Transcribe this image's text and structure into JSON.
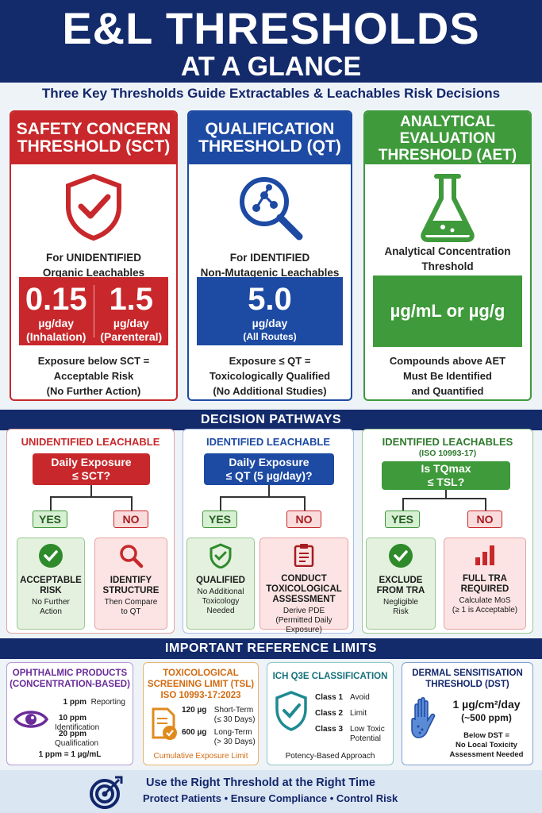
{
  "header": {
    "title": "E&L THRESHOLDS",
    "subtitle": "AT A GLANCE"
  },
  "tagline": "Three Key Thresholds Guide Extractables & Leachables Risk Decisions",
  "cards": {
    "sct": {
      "title": "SAFETY CONCERN THRESHOLD (SCT)",
      "for_line1": "For UNIDENTIFIED",
      "for_line2": "Organic Leachables",
      "v1": "0.15",
      "u1": "µg/day",
      "r1": "(Inhalation)",
      "v2": "1.5",
      "u2": "µg/day",
      "r2": "(Parenteral)",
      "note1": "Exposure below SCT =",
      "note2": "Acceptable Risk",
      "note3": "(No Further Action)",
      "icon": "shield-check-icon"
    },
    "qt": {
      "title": "QUALIFICATION THRESHOLD (QT)",
      "for_line1": "For IDENTIFIED",
      "for_line2": "Non-Mutagenic Leachables",
      "v1": "5.0",
      "u1": "µg/day",
      "r1": "(All Routes)",
      "note1": "Exposure ≤ QT =",
      "note2": "Toxicologically Qualified",
      "note3": "(No Additional Studies)",
      "icon": "magnifier-molecule-icon"
    },
    "aet": {
      "title": "ANALYTICAL EVALUATION THRESHOLD (AET)",
      "for_line1": "Analytical Concentration",
      "for_line2": "Threshold",
      "v1": "µg/mL or µg/g",
      "note1": "Compounds above AET",
      "note2": "Must Be Identified",
      "note3": "and Quantified",
      "icon": "flask-icon"
    }
  },
  "pathways": {
    "title": "DECISION PATHWAYS",
    "p1": {
      "title": "UNIDENTIFIED LEACHABLE",
      "q1": "Daily Exposure",
      "q2": "≤ SCT?",
      "yes": "YES",
      "no": "NO",
      "r1t1": "ACCEPTABLE",
      "r1t2": "RISK",
      "r1d1": "No Further",
      "r1d2": "Action",
      "r2t1": "IDENTIFY",
      "r2t2": "STRUCTURE",
      "r2d1": "Then Compare",
      "r2d2": "to QT"
    },
    "p2": {
      "title": "IDENTIFIED LEACHABLE",
      "q1": "Daily Exposure",
      "q2": "≤ QT (5 µg/day)?",
      "yes": "YES",
      "no": "NO",
      "r1t1": "QUALIFIED",
      "r1d1": "No Additional",
      "r1d2": "Toxicology",
      "r1d3": "Needed",
      "r2t1": "CONDUCT",
      "r2t2": "TOXICOLOGICAL",
      "r2t3": "ASSESSMENT",
      "r2d1": "Derive PDE",
      "r2d2": "(Permitted Daily",
      "r2d3": "Exposure)"
    },
    "p3": {
      "title": "IDENTIFIED LEACHABLES",
      "title2": "(ISO 10993-17)",
      "q1": "Is TQmax",
      "q2": "≤ TSL?",
      "yes": "YES",
      "no": "NO",
      "r1t1": "EXCLUDE",
      "r1t2": "FROM TRA",
      "r1d1": "Negligible",
      "r1d2": "Risk",
      "r2t1": "FULL TRA",
      "r2t2": "REQUIRED",
      "r2d1": "Calculate MoS",
      "r2d2": "(≥ 1 is Acceptable)"
    }
  },
  "refs": {
    "title": "IMPORTANT REFERENCE LIMITS",
    "oph": {
      "h1": "OPHTHALMIC PRODUCTS",
      "h2": "(CONCENTRATION-BASED)",
      "rows": [
        {
          "v": "1 ppm",
          "l": "Reporting"
        },
        {
          "v": "10 ppm",
          "l": "Identification"
        },
        {
          "v": "20 ppm",
          "l": "Qualification"
        }
      ],
      "foot": "1 ppm = 1 µg/mL"
    },
    "tsl": {
      "h1": "TOXICOLOGICAL",
      "h2": "SCREENING LIMIT (TSL)",
      "h3": "ISO 10993-17:2023",
      "a_v": "120 µg",
      "a_l1": "Short-Term",
      "a_l2": "(≤ 30 Days)",
      "b_v": "600 µg",
      "b_l1": "Long-Term",
      "b_l2": "(> 30 Days)",
      "foot": "Cumulative Exposure Limit"
    },
    "ich": {
      "h1": "ICH Q3E CLASSIFICATION",
      "rows": [
        {
          "c": "Class 1",
          "l": "Avoid"
        },
        {
          "c": "Class 2",
          "l": "Limit"
        },
        {
          "c": "Class 3",
          "l": "Low Toxic",
          "l2": "Potential"
        }
      ],
      "foot": "Potency-Based Approach"
    },
    "dst": {
      "h1": "DERMAL SENSITISATION",
      "h2": "THRESHOLD (DST)",
      "v": "1 µg/cm²/day",
      "v2": "(~500 ppm)",
      "n1": "Below DST =",
      "n2": "No Local Toxicity",
      "n3": "Assessment Needed"
    }
  },
  "footer": {
    "line1": "Use the Right Threshold at the Right Time",
    "line2": "Protect Patients • Ensure Compliance • Control Risk"
  },
  "colors": {
    "navy": "#132a6b",
    "red": "#c8282b",
    "blue": "#1d4aa3",
    "green": "#3f9a3b"
  }
}
